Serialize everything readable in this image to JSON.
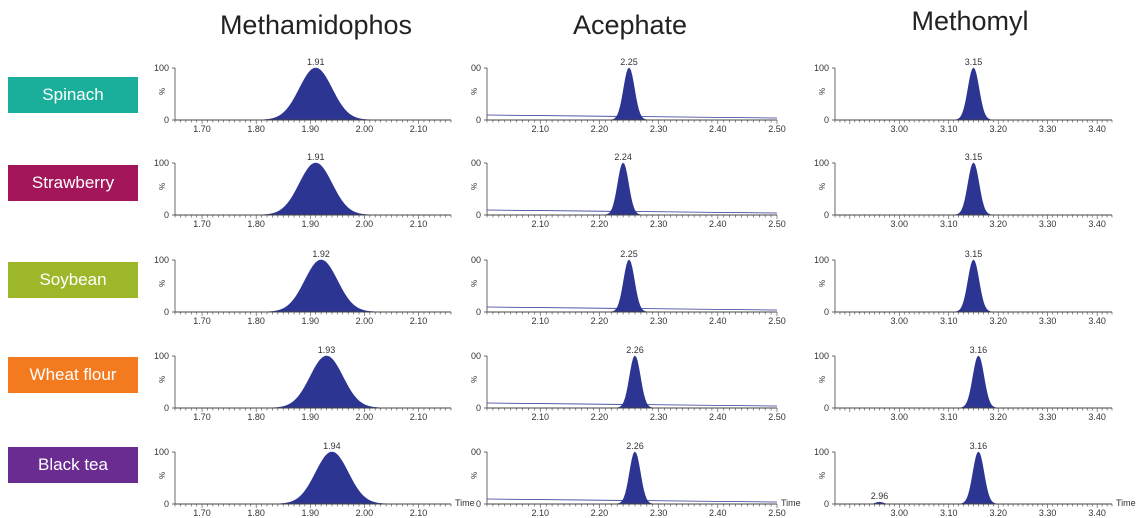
{
  "compounds": [
    "Methamidophos",
    "Acephate",
    "Methomyl"
  ],
  "samples": [
    {
      "label": "Spinach",
      "color": "#1aaf9a"
    },
    {
      "label": "Strawberry",
      "color": "#a3175a"
    },
    {
      "label": "Soybean",
      "color": "#9cb82a"
    },
    {
      "label": "Wheat flour",
      "color": "#f47a20"
    },
    {
      "label": "Black tea",
      "color": "#6a2c91"
    }
  ],
  "y_axis": {
    "top_tick": "100",
    "acephate_top_tick": "00",
    "bottom_tick": "0",
    "label": "%"
  },
  "time_label": "Time",
  "peak_color": "#2c3592",
  "chart_data": [
    {
      "type": "area",
      "compound": "Methamidophos",
      "xlim": [
        1.65,
        2.16
      ],
      "xticks": [
        "1.70",
        "1.80",
        "1.90",
        "2.00",
        "2.10"
      ],
      "ylim": [
        0,
        100
      ],
      "peak_width": 0.03,
      "series": [
        {
          "sample": "Spinach",
          "retention_time": 1.91,
          "label": "1.91"
        },
        {
          "sample": "Strawberry",
          "retention_time": 1.91,
          "label": "1.91"
        },
        {
          "sample": "Soybean",
          "retention_time": 1.92,
          "label": "1.92"
        },
        {
          "sample": "Wheat flour",
          "retention_time": 1.93,
          "label": "1.93"
        },
        {
          "sample": "Black tea",
          "retention_time": 1.94,
          "label": "1.94"
        }
      ]
    },
    {
      "type": "area",
      "compound": "Acephate",
      "xlim": [
        2.01,
        2.5
      ],
      "xticks": [
        "2.10",
        "2.20",
        "2.30",
        "2.40",
        "2.50"
      ],
      "ylim": [
        0,
        100
      ],
      "peak_width": 0.009,
      "series": [
        {
          "sample": "Spinach",
          "retention_time": 2.25,
          "label": "2.25"
        },
        {
          "sample": "Strawberry",
          "retention_time": 2.24,
          "label": "2.24"
        },
        {
          "sample": "Soybean",
          "retention_time": 2.25,
          "label": "2.25"
        },
        {
          "sample": "Wheat flour",
          "retention_time": 2.26,
          "label": "2.26"
        },
        {
          "sample": "Black tea",
          "retention_time": 2.26,
          "label": "2.26"
        }
      ]
    },
    {
      "type": "area",
      "compound": "Methomyl",
      "xlim": [
        2.87,
        3.43
      ],
      "xticks": [
        "3.00",
        "3.10",
        "3.20",
        "3.30",
        "3.40"
      ],
      "ylim": [
        0,
        100
      ],
      "peak_width": 0.011,
      "series": [
        {
          "sample": "Spinach",
          "retention_time": 3.15,
          "label": "3.15"
        },
        {
          "sample": "Strawberry",
          "retention_time": 3.15,
          "label": "3.15"
        },
        {
          "sample": "Soybean",
          "retention_time": 3.15,
          "label": "3.15"
        },
        {
          "sample": "Wheat flour",
          "retention_time": 3.16,
          "label": "3.16"
        },
        {
          "sample": "Black tea",
          "retention_time": 3.16,
          "label": "3.16",
          "minor_peak": {
            "retention_time": 2.96,
            "label": "2.96",
            "height": 4
          }
        }
      ]
    }
  ]
}
